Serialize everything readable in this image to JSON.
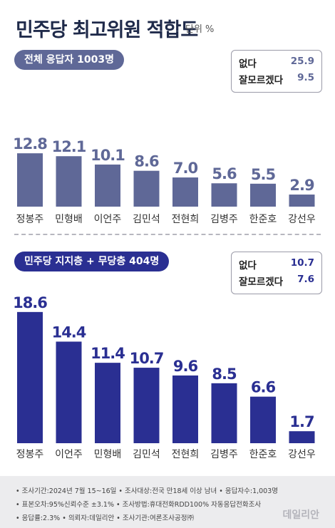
{
  "header": {
    "title": "민주당 최고위원 적합도",
    "unit": "단위 %"
  },
  "chart_data": [
    {
      "type": "bar",
      "title": "전체 응답자 1003명",
      "categories": [
        "정봉주",
        "민형배",
        "이언주",
        "김민석",
        "전현희",
        "김병주",
        "한준호",
        "강선우"
      ],
      "values": [
        12.8,
        12.1,
        10.1,
        8.6,
        7.0,
        5.6,
        5.5,
        2.9
      ],
      "value_labels": [
        "12.8",
        "12.1",
        "10.1",
        "8.6",
        "7.0",
        "5.6",
        "5.5",
        "2.9"
      ],
      "legend": [
        {
          "label": "없다",
          "value": "25.9"
        },
        {
          "label": "잘모르겠다",
          "value": "9.5"
        }
      ],
      "color": "#5f6897",
      "grid": false
    },
    {
      "type": "bar",
      "title": "민주당 지지층 + 무당층 404명",
      "categories": [
        "정봉주",
        "이언주",
        "민형배",
        "김민석",
        "전현희",
        "김병주",
        "한준호",
        "강선우"
      ],
      "values": [
        18.6,
        14.4,
        11.4,
        10.7,
        9.6,
        8.5,
        6.6,
        1.7
      ],
      "value_labels": [
        "18.6",
        "14.4",
        "11.4",
        "10.7",
        "9.6",
        "8.5",
        "6.6",
        "1.7"
      ],
      "legend": [
        {
          "label": "없다",
          "value": "10.7"
        },
        {
          "label": "잘모르겠다",
          "value": "7.6"
        }
      ],
      "color": "#2a2f92",
      "grid": false
    }
  ],
  "footer": {
    "lines": [
      "• 조사기간:2024년 7월 15~16일  • 조사대상:전국 만18세 이상 남녀  • 응답자수:1,003명",
      "• 표본오차:95%신뢰수준 ±3.1%  • 조사방법:휴대전화RDD100% 자동응답전화조사",
      "• 응답률:2.3%  • 의뢰자:데일리안  • 조사기관:여론조사공정㈜"
    ],
    "logo": "데일리안"
  }
}
